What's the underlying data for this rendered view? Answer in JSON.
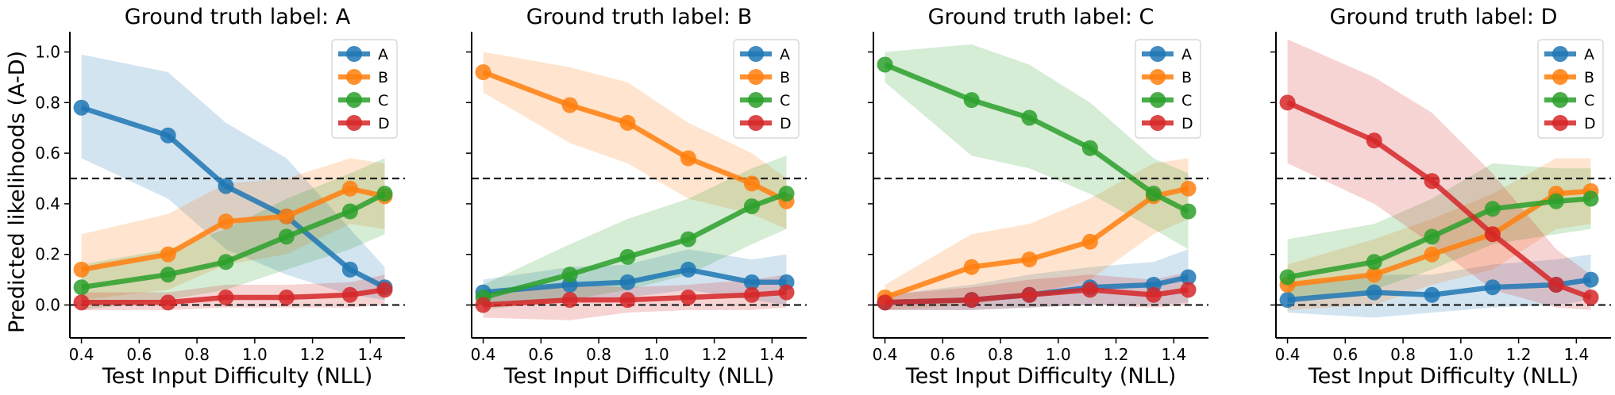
{
  "figure": {
    "ylabel": "Predicted likelihoods (A-D)",
    "xlabel": "Test Input Difficulty (NLL)"
  },
  "colors": {
    "A": "#1f77b4",
    "B": "#ff7f0e",
    "C": "#2ca02c",
    "D": "#d62728"
  },
  "chart_data": [
    {
      "type": "line",
      "title": "Ground truth label: A",
      "xlabel": "Test Input Difficulty (NLL)",
      "ylabel": "Predicted likelihoods (A-D)",
      "x": [
        0.4,
        0.7,
        0.9,
        1.11,
        1.33,
        1.45
      ],
      "xlim": [
        0.36,
        1.52
      ],
      "ylim": [
        -0.13,
        1.08
      ],
      "xticks": [
        "0.4",
        "0.6",
        "0.8",
        "1.0",
        "1.2",
        "1.4"
      ],
      "yticks": [
        "0.0",
        "0.2",
        "0.4",
        "0.6",
        "0.8",
        "1.0"
      ],
      "hlines": [
        0.0,
        0.5
      ],
      "legend": "top-right",
      "series": [
        {
          "name": "A",
          "values": [
            0.78,
            0.67,
            0.47,
            0.35,
            0.14,
            0.07
          ],
          "lower": [
            0.58,
            0.42,
            0.22,
            0.12,
            0.04,
            0.02
          ],
          "upper": [
            0.99,
            0.92,
            0.72,
            0.58,
            0.3,
            0.15
          ]
        },
        {
          "name": "B",
          "values": [
            0.14,
            0.2,
            0.33,
            0.35,
            0.46,
            0.43
          ],
          "lower": [
            0.02,
            0.06,
            0.16,
            0.2,
            0.32,
            0.3
          ],
          "upper": [
            0.28,
            0.36,
            0.48,
            0.5,
            0.58,
            0.56
          ]
        },
        {
          "name": "C",
          "values": [
            0.07,
            0.12,
            0.17,
            0.27,
            0.37,
            0.44
          ],
          "lower": [
            -0.02,
            0.02,
            0.06,
            0.14,
            0.22,
            0.28
          ],
          "upper": [
            0.16,
            0.22,
            0.3,
            0.42,
            0.52,
            0.58
          ]
        },
        {
          "name": "D",
          "values": [
            0.01,
            0.01,
            0.03,
            0.03,
            0.04,
            0.06
          ],
          "lower": [
            -0.02,
            -0.02,
            -0.01,
            -0.01,
            -0.01,
            0.0
          ],
          "upper": [
            0.05,
            0.05,
            0.08,
            0.08,
            0.09,
            0.12
          ]
        }
      ]
    },
    {
      "type": "line",
      "title": "Ground truth label: B",
      "xlabel": "Test Input Difficulty (NLL)",
      "ylabel": "",
      "x": [
        0.4,
        0.7,
        0.9,
        1.11,
        1.33,
        1.45
      ],
      "xlim": [
        0.36,
        1.52
      ],
      "ylim": [
        -0.13,
        1.08
      ],
      "xticks": [
        "0.4",
        "0.6",
        "0.8",
        "1.0",
        "1.2",
        "1.4"
      ],
      "yticks": [],
      "hlines": [
        0.0,
        0.5
      ],
      "legend": "top-right",
      "series": [
        {
          "name": "A",
          "values": [
            0.05,
            0.08,
            0.09,
            0.14,
            0.09,
            0.09
          ],
          "lower": [
            0.0,
            0.02,
            0.03,
            0.06,
            0.02,
            0.0
          ],
          "upper": [
            0.1,
            0.15,
            0.16,
            0.22,
            0.18,
            0.2
          ]
        },
        {
          "name": "B",
          "values": [
            0.92,
            0.79,
            0.72,
            0.58,
            0.48,
            0.41
          ],
          "lower": [
            0.84,
            0.64,
            0.56,
            0.42,
            0.36,
            0.3
          ],
          "upper": [
            1.0,
            0.94,
            0.88,
            0.72,
            0.6,
            0.5
          ]
        },
        {
          "name": "C",
          "values": [
            0.03,
            0.12,
            0.19,
            0.26,
            0.39,
            0.44
          ],
          "lower": [
            -0.02,
            0.02,
            0.06,
            0.12,
            0.24,
            0.3
          ],
          "upper": [
            0.08,
            0.24,
            0.34,
            0.42,
            0.54,
            0.59
          ]
        },
        {
          "name": "D",
          "values": [
            0.0,
            0.02,
            0.02,
            0.03,
            0.04,
            0.05
          ],
          "lower": [
            -0.05,
            -0.06,
            -0.03,
            -0.02,
            -0.02,
            -0.01
          ],
          "upper": [
            0.05,
            0.08,
            0.07,
            0.08,
            0.1,
            0.12
          ]
        }
      ]
    },
    {
      "type": "line",
      "title": "Ground truth label: C",
      "xlabel": "Test Input Difficulty (NLL)",
      "ylabel": "",
      "x": [
        0.4,
        0.7,
        0.9,
        1.11,
        1.33,
        1.45
      ],
      "xlim": [
        0.36,
        1.52
      ],
      "ylim": [
        -0.13,
        1.08
      ],
      "xticks": [
        "0.4",
        "0.6",
        "0.8",
        "1.0",
        "1.2",
        "1.4"
      ],
      "yticks": [],
      "hlines": [
        0.0,
        0.5
      ],
      "legend": "top-right",
      "series": [
        {
          "name": "A",
          "values": [
            0.01,
            0.02,
            0.04,
            0.07,
            0.08,
            0.11
          ],
          "lower": [
            -0.02,
            -0.02,
            -0.01,
            0.0,
            0.0,
            0.01
          ],
          "upper": [
            0.04,
            0.08,
            0.12,
            0.15,
            0.17,
            0.22
          ]
        },
        {
          "name": "B",
          "values": [
            0.03,
            0.15,
            0.18,
            0.25,
            0.43,
            0.46
          ],
          "lower": [
            -0.02,
            0.0,
            0.04,
            0.1,
            0.28,
            0.34
          ],
          "upper": [
            0.08,
            0.28,
            0.32,
            0.42,
            0.56,
            0.58
          ]
        },
        {
          "name": "C",
          "values": [
            0.95,
            0.81,
            0.74,
            0.62,
            0.44,
            0.37
          ],
          "lower": [
            0.88,
            0.59,
            0.54,
            0.44,
            0.3,
            0.22
          ],
          "upper": [
            1.0,
            1.03,
            0.95,
            0.8,
            0.58,
            0.52
          ]
        },
        {
          "name": "D",
          "values": [
            0.01,
            0.02,
            0.04,
            0.06,
            0.04,
            0.06
          ],
          "lower": [
            -0.02,
            -0.02,
            -0.01,
            0.0,
            -0.01,
            0.0
          ],
          "upper": [
            0.04,
            0.07,
            0.1,
            0.12,
            0.1,
            0.13
          ]
        }
      ]
    },
    {
      "type": "line",
      "title": "Ground truth label: D",
      "xlabel": "Test Input Difficulty (NLL)",
      "ylabel": "",
      "x": [
        0.4,
        0.7,
        0.9,
        1.11,
        1.33,
        1.45
      ],
      "xlim": [
        0.36,
        1.52
      ],
      "ylim": [
        -0.13,
        1.08
      ],
      "xticks": [
        "0.4",
        "0.6",
        "0.8",
        "1.0",
        "1.2",
        "1.4"
      ],
      "yticks": [],
      "hlines": [
        0.0,
        0.5
      ],
      "legend": "top-right",
      "series": [
        {
          "name": "A",
          "values": [
            0.02,
            0.05,
            0.04,
            0.07,
            0.08,
            0.1
          ],
          "lower": [
            -0.03,
            -0.05,
            -0.03,
            -0.01,
            0.0,
            0.02
          ],
          "upper": [
            0.08,
            0.12,
            0.12,
            0.16,
            0.18,
            0.2
          ]
        },
        {
          "name": "B",
          "values": [
            0.08,
            0.12,
            0.2,
            0.28,
            0.44,
            0.45
          ],
          "lower": [
            -0.02,
            0.0,
            0.08,
            0.14,
            0.3,
            0.32
          ],
          "upper": [
            0.16,
            0.26,
            0.34,
            0.44,
            0.58,
            0.58
          ]
        },
        {
          "name": "C",
          "values": [
            0.11,
            0.17,
            0.27,
            0.38,
            0.41,
            0.42
          ],
          "lower": [
            0.02,
            0.06,
            0.14,
            0.24,
            0.28,
            0.3
          ],
          "upper": [
            0.26,
            0.32,
            0.42,
            0.56,
            0.54,
            0.54
          ]
        },
        {
          "name": "D",
          "values": [
            0.8,
            0.65,
            0.49,
            0.28,
            0.08,
            0.03
          ],
          "lower": [
            0.56,
            0.4,
            0.24,
            0.06,
            -0.01,
            -0.02
          ],
          "upper": [
            1.05,
            0.9,
            0.76,
            0.52,
            0.22,
            0.12
          ]
        }
      ]
    }
  ]
}
